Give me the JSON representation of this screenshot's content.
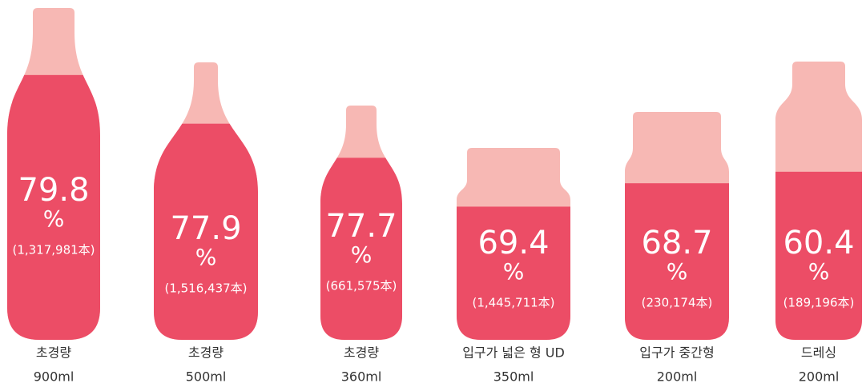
{
  "chart_data": {
    "type": "bottle",
    "categories": [
      "초경량",
      "초경량",
      "초경량",
      "입구가 넓은 형 UD",
      "입구가 중간형",
      "드레싱"
    ],
    "sizes": [
      "900ml",
      "500ml",
      "360ml",
      "350ml",
      "200ml",
      "200ml"
    ],
    "values": [
      79.8,
      77.9,
      77.7,
      69.4,
      68.7,
      60.4
    ],
    "unit": "%",
    "count_labels": [
      "(1,317,981本)",
      "(1,516,437本)",
      "(661,575本)",
      "(1,445,711本)",
      "(230,174本)",
      "(189,196本)"
    ],
    "color": "#ec4d66",
    "empty_color": "#f7b8b4"
  }
}
